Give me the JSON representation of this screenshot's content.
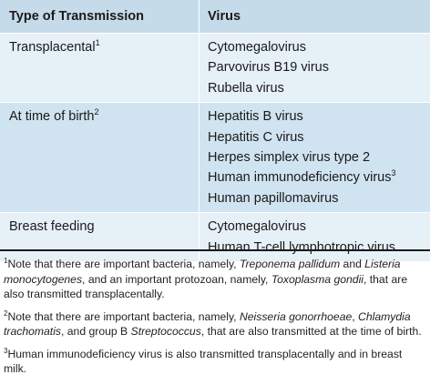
{
  "table": {
    "header": {
      "col1": "Type of Transmission",
      "col2": "Virus"
    },
    "groups": [
      {
        "type": "Transplacental",
        "type_sup": "1",
        "viruses": [
          "Cytomegalovirus",
          "Parvovirus B19 virus",
          "Rubella virus"
        ]
      },
      {
        "type": "At time of birth",
        "type_sup": "2",
        "viruses": [
          "Hepatitis B virus",
          "Hepatitis C virus",
          "Herpes simplex virus type 2",
          "Human immunodeficiency virus",
          "Human papillomavirus"
        ],
        "virus_sup": "3"
      },
      {
        "type": "Breast feeding",
        "type_sup": "",
        "viruses": [
          "Cytomegalovirus",
          "Human T-cell lymphotropic virus"
        ]
      }
    ]
  },
  "notes": {
    "n1": {
      "sup": "1",
      "a": "Note that there are important bacteria, namely, ",
      "i1": "Treponema pallidum",
      "b": " and ",
      "i2": "Listeria monocytogenes",
      "c": ", and an important protozoan, namely, ",
      "i3": "Toxoplasma gondii",
      "d": ", that are also transmitted transplacentally."
    },
    "n2": {
      "sup": "2",
      "a": "Note that there are important bacteria, namely, ",
      "i1": "Neisseria gonorrhoeae",
      "b": ", ",
      "i2": "Chlamydia trachomatis",
      "c": ", and group B ",
      "i3": "Streptococcus",
      "d": ", that are also transmitted at the time of birth."
    },
    "n3": {
      "sup": "3",
      "a": "Human immunodeficiency virus is also transmitted transplacentally and in breast milk."
    }
  }
}
